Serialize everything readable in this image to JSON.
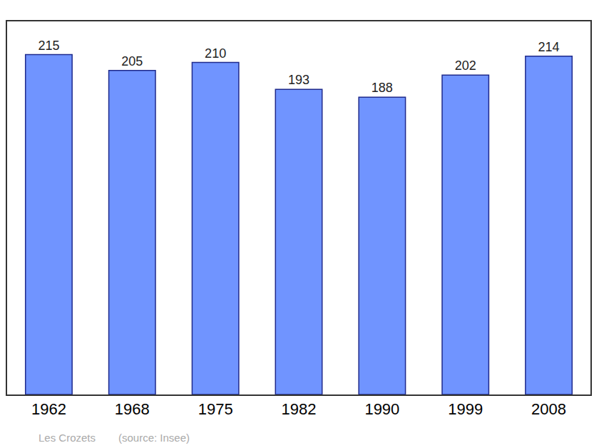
{
  "chart_data": {
    "type": "bar",
    "categories": [
      "1962",
      "1968",
      "1975",
      "1982",
      "1990",
      "1999",
      "2008"
    ],
    "values": [
      215,
      205,
      210,
      193,
      188,
      202,
      214
    ],
    "color": "#7094ff",
    "ylim": [
      0,
      236
    ],
    "data_labels": true,
    "tick_labels": "x",
    "grid": false,
    "annotations": [
      "Les Crozets",
      "(source: Insee)"
    ]
  }
}
